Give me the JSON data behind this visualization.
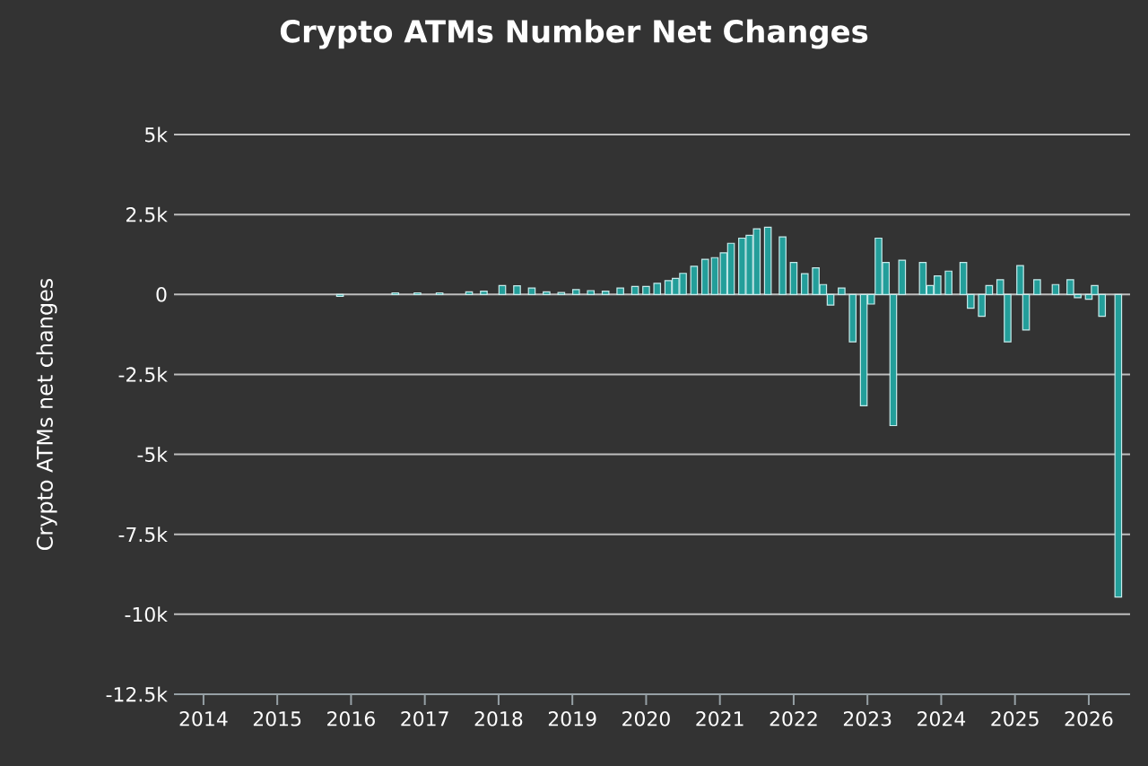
{
  "chart_data": {
    "type": "bar",
    "title": "Crypto ATMs Number Net Changes",
    "ylabel": "Crypto ATMs net changes",
    "x": [
      2015.85,
      2016.6,
      2016.9,
      2017.2,
      2017.6,
      2017.8,
      2018.05,
      2018.25,
      2018.45,
      2018.65,
      2018.85,
      2019.05,
      2019.25,
      2019.45,
      2019.65,
      2019.85,
      2020.0,
      2020.15,
      2020.3,
      2020.4,
      2020.5,
      2020.65,
      2020.8,
      2020.93,
      2021.05,
      2021.15,
      2021.3,
      2021.4,
      2021.5,
      2021.65,
      2021.85,
      2022.0,
      2022.15,
      2022.3,
      2022.4,
      2022.5,
      2022.65,
      2022.8,
      2022.95,
      2023.05,
      2023.15,
      2023.25,
      2023.35,
      2023.47,
      2023.75,
      2023.85,
      2023.95,
      2024.1,
      2024.3,
      2024.4,
      2024.55,
      2024.65,
      2024.8,
      2024.9,
      2025.07,
      2025.15,
      2025.3,
      2025.55,
      2025.75,
      2025.85,
      2026.0,
      2026.08,
      2026.18,
      2026.4
    ],
    "values": [
      -60,
      50,
      50,
      50,
      80,
      100,
      280,
      270,
      200,
      80,
      60,
      150,
      120,
      100,
      200,
      250,
      250,
      350,
      430,
      500,
      660,
      880,
      1100,
      1150,
      1300,
      1600,
      1760,
      1850,
      2050,
      2100,
      1800,
      1000,
      650,
      830,
      310,
      -330,
      200,
      -1480,
      -3480,
      -300,
      1760,
      1000,
      -4100,
      1070,
      1000,
      280,
      580,
      730,
      1000,
      -430,
      -680,
      280,
      460,
      -1480,
      900,
      -1110,
      460,
      310,
      460,
      -100,
      -150,
      280,
      -680,
      -9460
    ],
    "color": "#239e9a",
    "xlim": [
      2013.6,
      2026.56
    ],
    "xticks": [
      2014,
      2015,
      2016,
      2017,
      2018,
      2019,
      2020,
      2021,
      2022,
      2023,
      2024,
      2025,
      2026
    ],
    "ylim": [
      -12500,
      5000
    ],
    "yticks": [
      {
        "value": -12500,
        "label": "-12.5k"
      },
      {
        "value": -10000,
        "label": "-10k"
      },
      {
        "value": -7500,
        "label": "-7.5k"
      },
      {
        "value": -5000,
        "label": "-5k"
      },
      {
        "value": -2500,
        "label": "-2.5k"
      },
      0,
      {
        "value": 2500,
        "label": "2.5k"
      },
      {
        "value": 5000,
        "label": "5k"
      }
    ],
    "grid": "y"
  }
}
